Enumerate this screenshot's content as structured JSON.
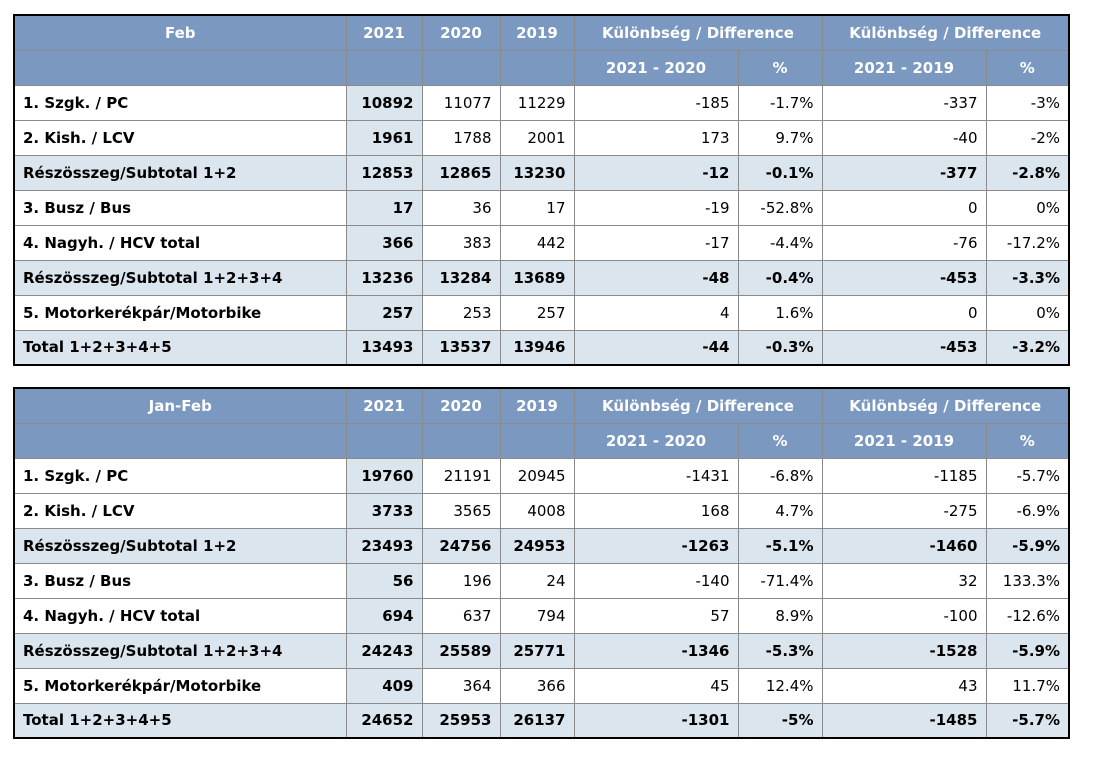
{
  "styles": {
    "header_bg": "#7A98C0",
    "header_text": "#FFFFFF",
    "highlight_bg": "#DBE5EE",
    "grid_color": "#8A8A8A",
    "outer_border": "#000000",
    "text_color": "#000000"
  },
  "chart_data": [
    {
      "type": "table",
      "title": "Feb",
      "group_header": "Különbség / Difference",
      "year_columns": [
        "2021",
        "2020",
        "2019"
      ],
      "diff_columns": [
        "2021 - 2020",
        "%",
        "2021 - 2019",
        "%"
      ],
      "rows": [
        {
          "label": "1. Szgk. / PC",
          "v2021": 10892,
          "v2020": 11077,
          "v2019": 11229,
          "diff_2021_2020": -185,
          "pct_2021_2020": "-1.7%",
          "diff_2021_2019": -337,
          "pct_2021_2019": "-3%",
          "emphasis": false
        },
        {
          "label": "2. Kish. / LCV",
          "v2021": 1961,
          "v2020": 1788,
          "v2019": 2001,
          "diff_2021_2020": 173,
          "pct_2021_2020": "9.7%",
          "diff_2021_2019": -40,
          "pct_2021_2019": "-2%",
          "emphasis": false
        },
        {
          "label": "Részösszeg/Subtotal 1+2",
          "v2021": 12853,
          "v2020": 12865,
          "v2019": 13230,
          "diff_2021_2020": -12,
          "pct_2021_2020": "-0.1%",
          "diff_2021_2019": -377,
          "pct_2021_2019": "-2.8%",
          "emphasis": true
        },
        {
          "label": "3. Busz / Bus",
          "v2021": 17,
          "v2020": 36,
          "v2019": 17,
          "diff_2021_2020": -19,
          "pct_2021_2020": "-52.8%",
          "diff_2021_2019": 0,
          "pct_2021_2019": "0%",
          "emphasis": false
        },
        {
          "label": "4. Nagyh. / HCV total",
          "v2021": 366,
          "v2020": 383,
          "v2019": 442,
          "diff_2021_2020": -17,
          "pct_2021_2020": "-4.4%",
          "diff_2021_2019": -76,
          "pct_2021_2019": "-17.2%",
          "emphasis": false
        },
        {
          "label": "Részösszeg/Subtotal 1+2+3+4",
          "v2021": 13236,
          "v2020": 13284,
          "v2019": 13689,
          "diff_2021_2020": -48,
          "pct_2021_2020": "-0.4%",
          "diff_2021_2019": -453,
          "pct_2021_2019": "-3.3%",
          "emphasis": true
        },
        {
          "label": "5. Motorkerékpár/Motorbike",
          "v2021": 257,
          "v2020": 253,
          "v2019": 257,
          "diff_2021_2020": 4,
          "pct_2021_2020": "1.6%",
          "diff_2021_2019": 0,
          "pct_2021_2019": "0%",
          "emphasis": false
        },
        {
          "label": "Total 1+2+3+4+5",
          "v2021": 13493,
          "v2020": 13537,
          "v2019": 13946,
          "diff_2021_2020": -44,
          "pct_2021_2020": "-0.3%",
          "diff_2021_2019": -453,
          "pct_2021_2019": "-3.2%",
          "emphasis": true
        }
      ]
    },
    {
      "type": "table",
      "title": "Jan-Feb",
      "group_header": "Különbség / Difference",
      "year_columns": [
        "2021",
        "2020",
        "2019"
      ],
      "diff_columns": [
        "2021 - 2020",
        "%",
        "2021 - 2019",
        "%"
      ],
      "rows": [
        {
          "label": "1. Szgk. / PC",
          "v2021": 19760,
          "v2020": 21191,
          "v2019": 20945,
          "diff_2021_2020": -1431,
          "pct_2021_2020": "-6.8%",
          "diff_2021_2019": -1185,
          "pct_2021_2019": "-5.7%",
          "emphasis": false
        },
        {
          "label": "2. Kish. / LCV",
          "v2021": 3733,
          "v2020": 3565,
          "v2019": 4008,
          "diff_2021_2020": 168,
          "pct_2021_2020": "4.7%",
          "diff_2021_2019": -275,
          "pct_2021_2019": "-6.9%",
          "emphasis": false
        },
        {
          "label": "Részösszeg/Subtotal 1+2",
          "v2021": 23493,
          "v2020": 24756,
          "v2019": 24953,
          "diff_2021_2020": -1263,
          "pct_2021_2020": "-5.1%",
          "diff_2021_2019": -1460,
          "pct_2021_2019": "-5.9%",
          "emphasis": true
        },
        {
          "label": "3. Busz / Bus",
          "v2021": 56,
          "v2020": 196,
          "v2019": 24,
          "diff_2021_2020": -140,
          "pct_2021_2020": "-71.4%",
          "diff_2021_2019": 32,
          "pct_2021_2019": "133.3%",
          "emphasis": false
        },
        {
          "label": "4. Nagyh. / HCV total",
          "v2021": 694,
          "v2020": 637,
          "v2019": 794,
          "diff_2021_2020": 57,
          "pct_2021_2020": "8.9%",
          "diff_2021_2019": -100,
          "pct_2021_2019": "-12.6%",
          "emphasis": false
        },
        {
          "label": "Részösszeg/Subtotal 1+2+3+4",
          "v2021": 24243,
          "v2020": 25589,
          "v2019": 25771,
          "diff_2021_2020": -1346,
          "pct_2021_2020": "-5.3%",
          "diff_2021_2019": -1528,
          "pct_2021_2019": "-5.9%",
          "emphasis": true
        },
        {
          "label": "5. Motorkerékpár/Motorbike",
          "v2021": 409,
          "v2020": 364,
          "v2019": 366,
          "diff_2021_2020": 45,
          "pct_2021_2020": "12.4%",
          "diff_2021_2019": 43,
          "pct_2021_2019": "11.7%",
          "emphasis": false
        },
        {
          "label": "Total 1+2+3+4+5",
          "v2021": 24652,
          "v2020": 25953,
          "v2019": 26137,
          "diff_2021_2020": -1301,
          "pct_2021_2020": "-5%",
          "diff_2021_2019": -1485,
          "pct_2021_2019": "-5.7%",
          "emphasis": true
        }
      ]
    }
  ]
}
